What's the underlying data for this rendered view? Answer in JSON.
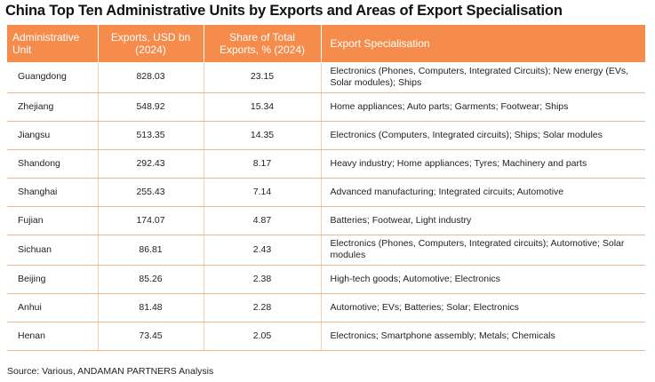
{
  "title": "China Top Ten Administrative Units by Exports and Areas of Export Specialisation",
  "headers": {
    "unit": "Administrative Unit",
    "exports": "Exports, USD bn (2024)",
    "share": "Share of Total Exports, % (2024)",
    "specialisation": "Export Specialisation"
  },
  "rows": [
    {
      "unit": "Guangdong",
      "exports": "828.03",
      "share": "23.15",
      "specialisation": "Electronics (Phones, Computers, Integrated Circuits); New energy (EVs, Solar modules); Ships"
    },
    {
      "unit": "Zhejiang",
      "exports": "548.92",
      "share": "15.34",
      "specialisation": "Home appliances; Auto parts; Garments; Footwear; Ships"
    },
    {
      "unit": "Jiangsu",
      "exports": "513.35",
      "share": "14.35",
      "specialisation": "Electronics (Computers, Integrated circuits); Ships; Solar modules"
    },
    {
      "unit": "Shandong",
      "exports": "292.43",
      "share": "8.17",
      "specialisation": "Heavy industry; Home appliances; Tyres; Machinery and parts"
    },
    {
      "unit": "Shanghai",
      "exports": "255.43",
      "share": "7.14",
      "specialisation": "Advanced manufacturing; Integrated circuits; Automotive"
    },
    {
      "unit": "Fujian",
      "exports": "174.07",
      "share": "4.87",
      "specialisation": "Batteries; Footwear, Light industry"
    },
    {
      "unit": "Sichuan",
      "exports": "86.81",
      "share": "2.43",
      "specialisation": "Electronics (Phones, Computers, Integrated circuits); Automotive; Solar modules"
    },
    {
      "unit": "Beijing",
      "exports": "85.26",
      "share": "2.38",
      "specialisation": "High-tech goods; Automotive; Electronics"
    },
    {
      "unit": "Anhui",
      "exports": "81.48",
      "share": "2.28",
      "specialisation": "Automotive; EVs; Batteries; Solar; Electronics"
    },
    {
      "unit": "Henan",
      "exports": "73.45",
      "share": "2.05",
      "specialisation": "Electronics; Smartphone assembly; Metals; Chemicals"
    }
  ],
  "source": "Source: Various, ANDAMAN PARTNERS Analysis"
}
